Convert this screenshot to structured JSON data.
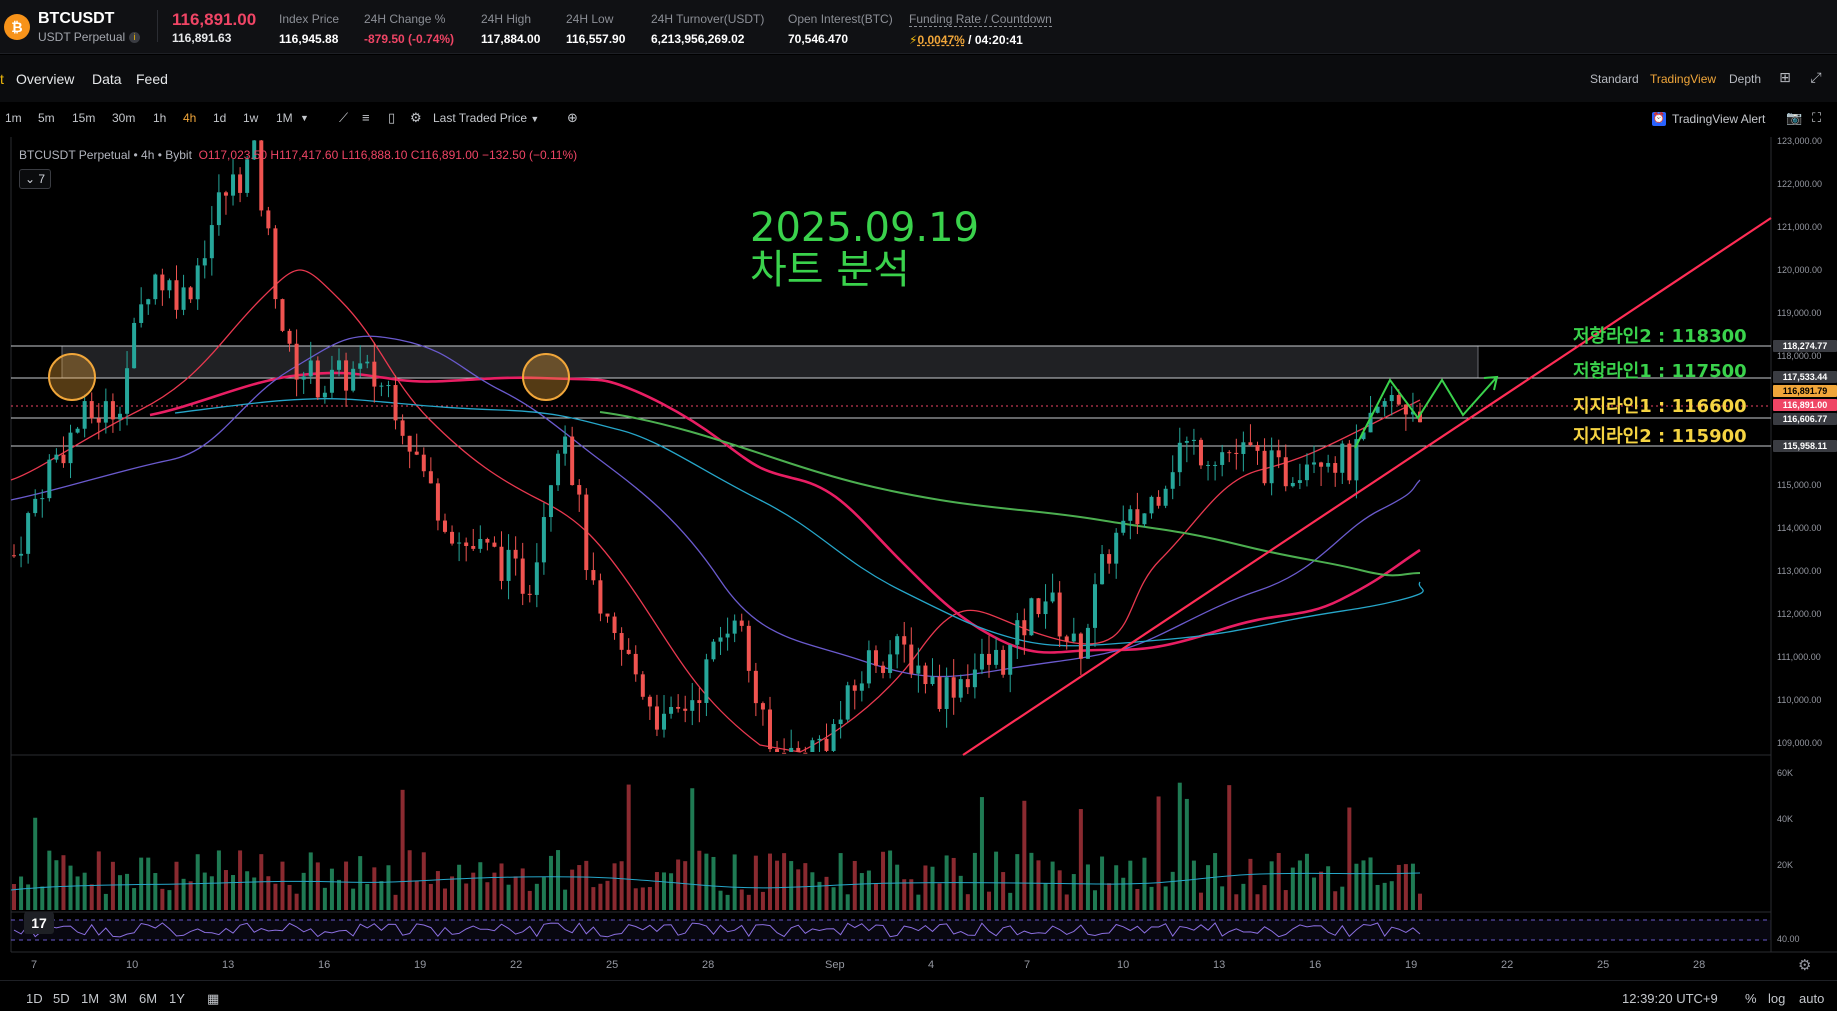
{
  "ticker": {
    "coin_glyph": "₿",
    "symbol": "BTCUSDT",
    "product": "USDT Perpetual",
    "info_glyph": "i",
    "last_price": "116,891.00",
    "mark_price": "116,891.63",
    "stats": [
      {
        "label": "Index Price",
        "value": "116,945.88",
        "tone": "white"
      },
      {
        "label": "24H Change %",
        "value": "-879.50 (-0.74%)",
        "tone": "red"
      },
      {
        "label": "24H High",
        "value": "117,884.00",
        "tone": "white"
      },
      {
        "label": "24H Low",
        "value": "116,557.90",
        "tone": "white"
      },
      {
        "label": "24H Turnover(USDT)",
        "value": "6,213,956,269.02",
        "tone": "white"
      },
      {
        "label": "Open Interest(BTC)",
        "value": "70,546.470",
        "tone": "white"
      }
    ],
    "funding_label": "Funding Rate / Countdown",
    "funding_rate": "0.0047%",
    "countdown": "/ 04:20:41"
  },
  "tabs": {
    "edge_fragment": "t",
    "items": [
      "Overview",
      "Data",
      "Feed"
    ],
    "views": [
      "Standard",
      "TradingView",
      "Depth"
    ],
    "active_view": "TradingView"
  },
  "toolbar": {
    "timeframes": [
      "1m",
      "5m",
      "15m",
      "30m",
      "1h",
      "4h",
      "1d",
      "1w",
      "1M"
    ],
    "active_timeframe": "4h",
    "price_source": "Last Traded Price",
    "alert_label": "TradingView Alert"
  },
  "legend": {
    "title": "BTCUSDT Perpetual • 4h • Bybit",
    "ohlc": "O117,023.50 H117,417.60 L116,888.10 C116,891.00 −132.50 (−0.11%)",
    "collapse_label": "7"
  },
  "annotation": {
    "date": "2025.09.19",
    "subtitle": "차트 분석",
    "levels": [
      {
        "text": "저항라인2 : 118300",
        "tone": "green"
      },
      {
        "text": "저항라인1 : 117500",
        "tone": "green"
      },
      {
        "text": "지지라인1 : 116600",
        "tone": "yellow"
      },
      {
        "text": "지지라인2 : 115900",
        "tone": "yellow"
      }
    ]
  },
  "price_axis": {
    "ticks": [
      "123,000.00",
      "122,000.00",
      "121,000.00",
      "120,000.00",
      "119,000.00",
      "118,000.00",
      "115,000.00",
      "114,000.00",
      "113,000.00",
      "112,000.00",
      "111,000.00",
      "110,000.00",
      "109,000.00"
    ],
    "tags": [
      {
        "text": "118,274.77",
        "bg": "#3a3c42",
        "fg": "#ffffff"
      },
      {
        "text": "117,533.44",
        "bg": "#3a3c42",
        "fg": "#ffffff"
      },
      {
        "text": "116,891.79",
        "bg": "#f0a63a",
        "fg": "#000000"
      },
      {
        "text": "116,891.00",
        "bg": "#ef4565",
        "fg": "#ffffff"
      },
      {
        "text": "116,606.77",
        "bg": "#3a3c42",
        "fg": "#ffffff"
      },
      {
        "text": "115,958.11",
        "bg": "#3a3c42",
        "fg": "#ffffff"
      }
    ]
  },
  "volume_axis": {
    "ticks": [
      "60K",
      "40K",
      "20K"
    ]
  },
  "rsi_axis": {
    "tick": "40.00"
  },
  "time_axis": {
    "labels": [
      "7",
      "10",
      "13",
      "16",
      "19",
      "22",
      "25",
      "28",
      "Sep",
      "4",
      "7",
      "10",
      "13",
      "16",
      "19",
      "22",
      "25",
      "28"
    ]
  },
  "bottom": {
    "ranges": [
      "1D",
      "5D",
      "1M",
      "3M",
      "6M",
      "1Y"
    ],
    "time": "12:39:20 UTC+9",
    "options": [
      "%",
      "log",
      "auto"
    ]
  },
  "colors": {
    "up": "#26a69a",
    "down": "#ef5350",
    "ma_fast": "#e8384f",
    "ma_red_thick": "#e81e63",
    "ma_purple": "#6a5acd",
    "ma_cyan": "#26a6c9",
    "ma_green": "#4caf50",
    "trendline": "#ff2d55",
    "annotation_green": "#3ad24c",
    "annotation_yellow": "#f5d442",
    "highlight_circle": "#f0a63a"
  },
  "chart_data": {
    "type": "candlestick",
    "symbol": "BTCUSDT Perpetual",
    "interval": "4h",
    "close_path": [
      [
        "7",
        113500
      ],
      [
        "8",
        115500
      ],
      [
        "9",
        116600
      ],
      [
        "10",
        116900
      ],
      [
        "11",
        120000
      ],
      [
        "12",
        119400
      ],
      [
        "13",
        121600
      ],
      [
        "14",
        122600
      ],
      [
        "15",
        118000
      ],
      [
        "16",
        117400
      ],
      [
        "17",
        117700
      ],
      [
        "18",
        117300
      ],
      [
        "19",
        115200
      ],
      [
        "20",
        113800
      ],
      [
        "21",
        113500
      ],
      [
        "22",
        112800
      ],
      [
        "23",
        116800
      ],
      [
        "24",
        112000
      ],
      [
        "25",
        111000
      ],
      [
        "26",
        109500
      ],
      [
        "27",
        110500
      ],
      [
        "28",
        112400
      ],
      [
        "29",
        109000
      ],
      [
        "Sep",
        108900
      ],
      [
        "2",
        109600
      ],
      [
        "3",
        111200
      ],
      [
        "4",
        111300
      ],
      [
        "5",
        110400
      ],
      [
        "6",
        110900
      ],
      [
        "7",
        111200
      ],
      [
        "8",
        112700
      ],
      [
        "9",
        111200
      ],
      [
        "10",
        113800
      ],
      [
        "11",
        114500
      ],
      [
        "12",
        116000
      ],
      [
        "13",
        115900
      ],
      [
        "14",
        115800
      ],
      [
        "15",
        115300
      ],
      [
        "16",
        116000
      ],
      [
        "17",
        115500
      ],
      [
        "18",
        117000
      ],
      [
        "19",
        116891
      ]
    ],
    "levels": {
      "resistance_2": 118300,
      "resistance_1": 117500,
      "support_1": 116600,
      "support_2": 115900
    },
    "ylim": [
      109000,
      123000
    ],
    "volume_ylim": [
      0,
      60000
    ],
    "rsi_tick": 40
  }
}
